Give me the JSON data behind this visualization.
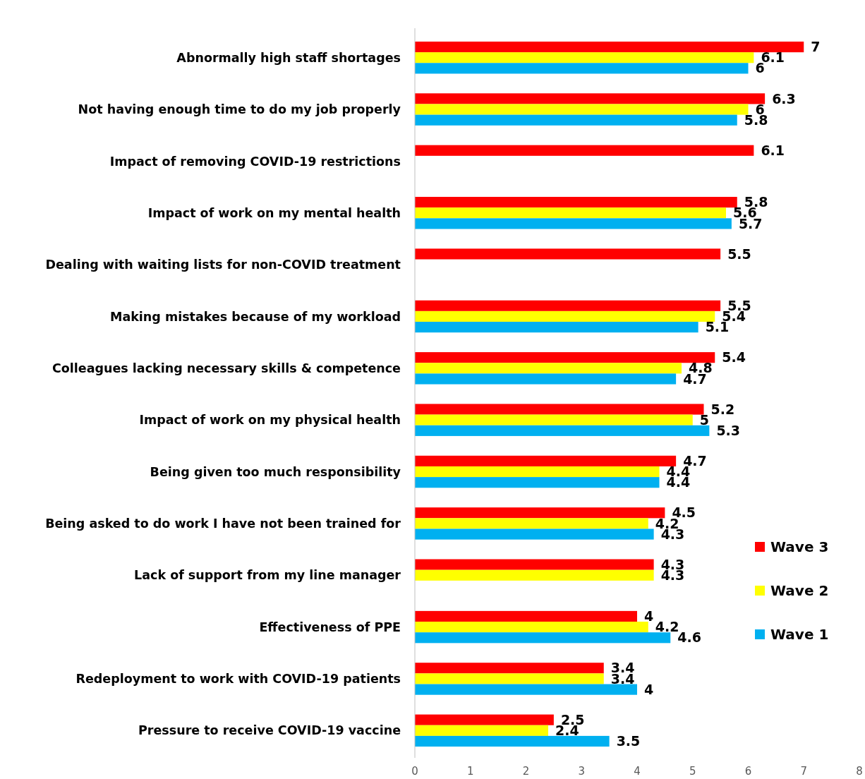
{
  "chart_data": {
    "type": "bar",
    "orientation": "horizontal",
    "categories": [
      "Abnormally high staff shortages",
      "Not having enough time to do my job properly",
      "Impact of removing COVID-19 restrictions",
      "Impact of work on my mental health",
      "Dealing with waiting lists for non-COVID treatment",
      "Making mistakes because of my workload",
      "Colleagues lacking necessary skills & competence",
      "Impact of work on my physical health",
      "Being given too much responsibility",
      "Being asked to do work I have not been trained for",
      "Lack of support from my line manager",
      "Effectiveness of PPE",
      "Redeployment to work with COVID-19 patients",
      "Pressure to receive COVID-19 vaccine"
    ],
    "series": [
      {
        "name": "Wave 3",
        "color": "#ff0000",
        "values": [
          7,
          6.3,
          6.1,
          5.8,
          5.5,
          5.5,
          5.4,
          5.2,
          4.7,
          4.5,
          4.3,
          4,
          3.4,
          2.5
        ]
      },
      {
        "name": "Wave 2",
        "color": "#ffff00",
        "values": [
          6.1,
          6,
          null,
          5.6,
          null,
          5.4,
          4.8,
          5,
          4.4,
          4.2,
          4.3,
          4.2,
          3.4,
          2.4
        ]
      },
      {
        "name": "Wave 1",
        "color": "#00b0f0",
        "values": [
          6,
          5.8,
          null,
          5.7,
          null,
          5.1,
          4.7,
          5.3,
          4.4,
          4.3,
          null,
          4.6,
          4,
          3.5
        ]
      }
    ],
    "xlim": [
      0,
      8
    ],
    "xticks": [
      0,
      1,
      2,
      3,
      4,
      5,
      6,
      7,
      8
    ],
    "data_labels": true,
    "legend": "right",
    "grid": false
  }
}
